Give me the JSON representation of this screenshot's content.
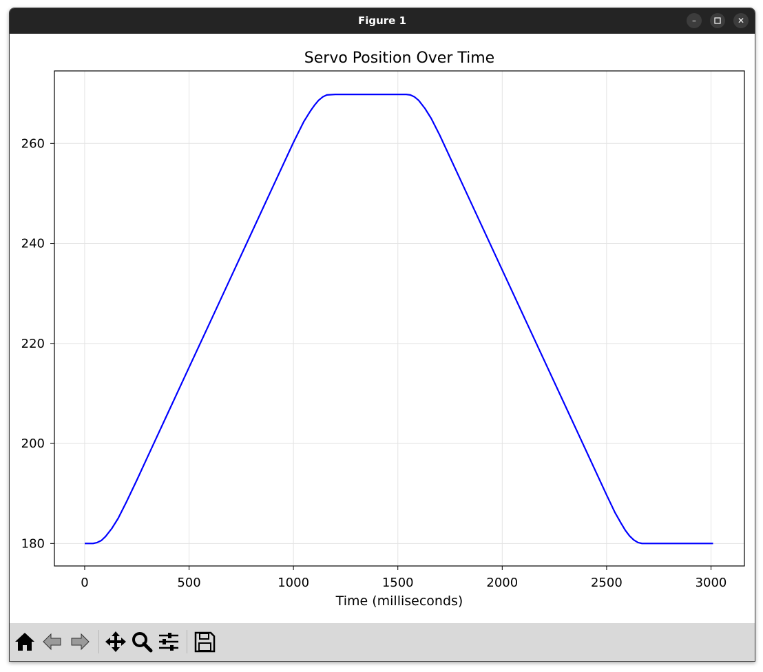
{
  "window": {
    "title": "Figure 1",
    "controls": {
      "minimize": "–",
      "maximize": "▫",
      "close": "✕"
    }
  },
  "toolbar": {
    "items": [
      "home-icon",
      "back-icon",
      "forward-icon",
      "pan-icon",
      "zoom-icon",
      "configure-subplots-icon",
      "save-icon"
    ]
  },
  "chart_data": {
    "type": "line",
    "title": "Servo Position Over Time",
    "xlabel": "Time (milliseconds)",
    "ylabel": "",
    "xlim": [
      -145,
      3160
    ],
    "ylim": [
      175.5,
      274.5
    ],
    "xticks": [
      0,
      500,
      1000,
      1500,
      2000,
      2500,
      3000
    ],
    "yticks": [
      180,
      200,
      220,
      240,
      260
    ],
    "grid": true,
    "series": [
      {
        "color": "#0000ff",
        "x": [
          0,
          40,
          60,
          80,
          100,
          130,
          160,
          200,
          250,
          300,
          400,
          500,
          600,
          700,
          800,
          900,
          1000,
          1050,
          1080,
          1100,
          1120,
          1140,
          1160,
          1200,
          1300,
          1400,
          1500,
          1540,
          1560,
          1580,
          1600,
          1630,
          1660,
          1700,
          1800,
          1900,
          2000,
          2100,
          2200,
          2300,
          2400,
          2500,
          2540,
          2570,
          2590,
          2610,
          2630,
          2650,
          2670,
          2700,
          2800,
          2900,
          3010
        ],
        "values": [
          180,
          180,
          180.2,
          180.6,
          181.4,
          183,
          185,
          188.3,
          192.7,
          197.2,
          206.2,
          215.2,
          224.2,
          233.2,
          242.2,
          251.2,
          260.2,
          264.4,
          266.4,
          267.6,
          268.6,
          269.3,
          269.7,
          269.8,
          269.8,
          269.8,
          269.8,
          269.8,
          269.7,
          269.3,
          268.6,
          267,
          265,
          261.7,
          252.7,
          243.7,
          234.7,
          225.7,
          216.7,
          207.7,
          198.7,
          189.7,
          186.2,
          184,
          182.6,
          181.5,
          180.7,
          180.2,
          180,
          180,
          180,
          180,
          180
        ]
      }
    ]
  }
}
